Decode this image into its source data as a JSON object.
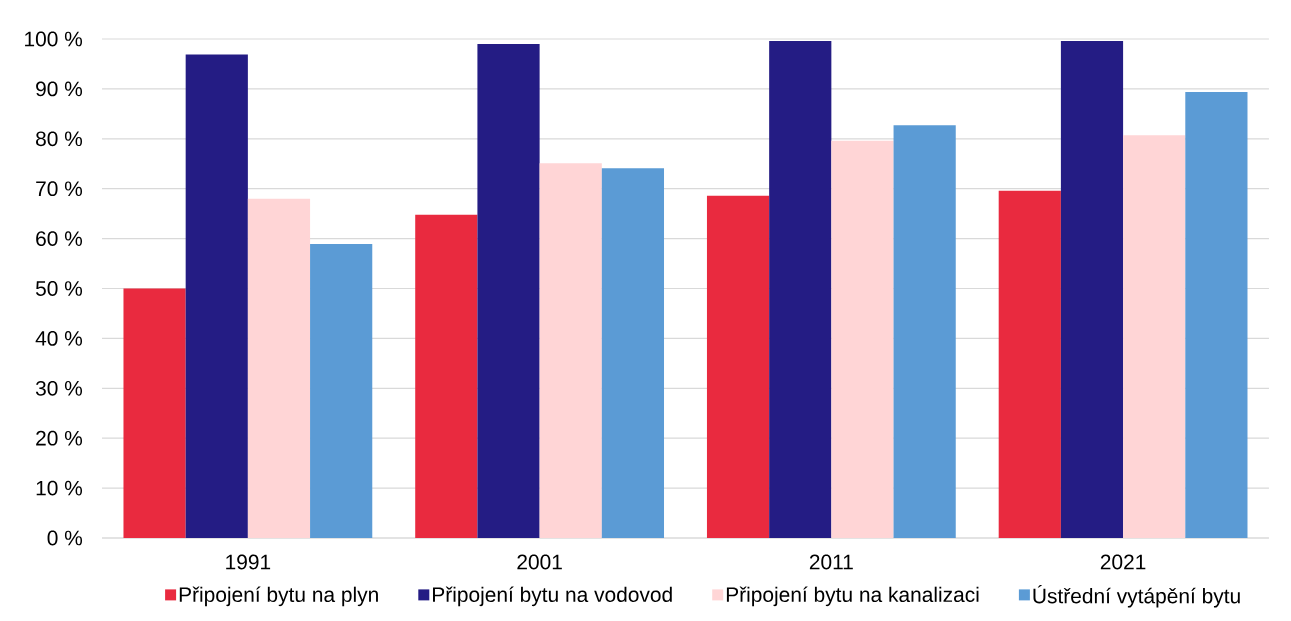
{
  "chart_data": {
    "type": "bar",
    "categories": [
      "1991",
      "2001",
      "2011",
      "2021"
    ],
    "series": [
      {
        "name": "Připojení bytu na plyn",
        "color": "#e92a3f",
        "values": [
          50.0,
          64.8,
          68.6,
          69.6
        ]
      },
      {
        "name": "Připojení bytu na vodovod",
        "color": "#241c84",
        "values": [
          96.9,
          99.0,
          99.6,
          99.6
        ]
      },
      {
        "name": "Připojení bytu na kanalizaci",
        "color": "#ffd5d6",
        "values": [
          68.0,
          75.1,
          79.6,
          80.7
        ]
      },
      {
        "name": "Ústřední vytápění bytu",
        "color": "#5b9bd5",
        "values": [
          58.9,
          74.1,
          82.7,
          89.4
        ]
      }
    ],
    "ylim": [
      0,
      100
    ],
    "yticks": [
      {
        "value": 0,
        "label": "0 %"
      },
      {
        "value": 10,
        "label": "10 %"
      },
      {
        "value": 20,
        "label": "20 %"
      },
      {
        "value": 30,
        "label": "30 %"
      },
      {
        "value": 40,
        "label": "40 %"
      },
      {
        "value": 50,
        "label": "50 %"
      },
      {
        "value": 60,
        "label": "60 %"
      },
      {
        "value": 70,
        "label": "70 %"
      },
      {
        "value": 80,
        "label": "80 %"
      },
      {
        "value": 90,
        "label": "90 %"
      },
      {
        "value": 100,
        "label": "100 %"
      }
    ],
    "grid": "y",
    "legend": "bottom"
  }
}
